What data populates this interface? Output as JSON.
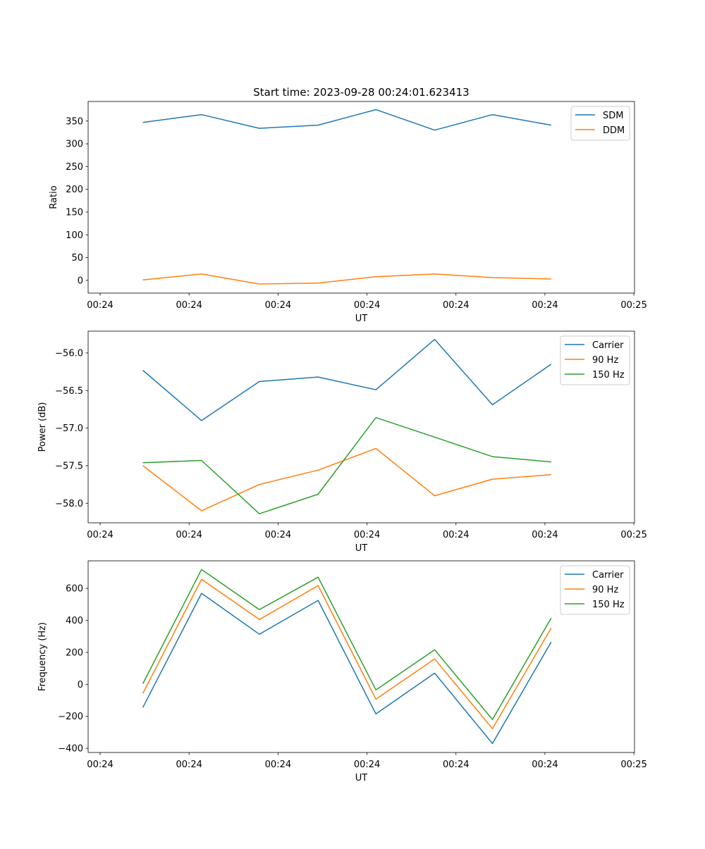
{
  "chart_data": [
    {
      "type": "line",
      "title": "Start time: 2023-09-28 00:24:01.623413",
      "xlabel": "UT",
      "ylabel": "Ratio",
      "x_seconds_after_0024": [
        4.8,
        11.4,
        17.9,
        24.5,
        31.0,
        37.6,
        44.1,
        50.7
      ],
      "xlim": [
        -1.35,
        60.07
      ],
      "xticks": [
        0,
        10,
        20,
        30,
        40,
        50,
        60
      ],
      "xtick_labels": [
        "00:24",
        "00:24",
        "00:24",
        "00:24",
        "00:24",
        "00:24",
        "00:25"
      ],
      "ylim": [
        -28,
        393
      ],
      "yticks": [
        0,
        50,
        100,
        150,
        200,
        250,
        300,
        350
      ],
      "ytick_labels": [
        "0",
        "50",
        "100",
        "150",
        "200",
        "250",
        "300",
        "350"
      ],
      "legend": "top-right",
      "series": [
        {
          "name": "SDM",
          "color": "#1f77b4",
          "values": [
            347,
            364,
            334,
            341,
            375,
            330,
            364,
            341
          ]
        },
        {
          "name": "DDM",
          "color": "#ff7f0e",
          "values": [
            1,
            14,
            -8,
            -6,
            8,
            14,
            6,
            3
          ]
        }
      ]
    },
    {
      "type": "line",
      "title": "",
      "xlabel": "UT",
      "ylabel": "Power (dB)",
      "x_seconds_after_0024": [
        4.8,
        11.4,
        17.9,
        24.5,
        31.0,
        37.6,
        44.1,
        50.7
      ],
      "xlim": [
        -1.35,
        60.07
      ],
      "xticks": [
        0,
        10,
        20,
        30,
        40,
        50,
        60
      ],
      "xtick_labels": [
        "00:24",
        "00:24",
        "00:24",
        "00:24",
        "00:24",
        "00:24",
        "00:25"
      ],
      "ylim": [
        -58.26,
        -55.71
      ],
      "yticks": [
        -58.0,
        -57.5,
        -57.0,
        -56.5,
        -56.0
      ],
      "ytick_labels": [
        "−58.0",
        "−57.5",
        "−57.0",
        "−56.5",
        "−56.0"
      ],
      "legend": "top-right",
      "series": [
        {
          "name": "Carrier",
          "color": "#1f77b4",
          "values": [
            -56.23,
            -56.9,
            -56.38,
            -56.32,
            -56.49,
            -55.82,
            -56.69,
            -56.15
          ]
        },
        {
          "name": "90 Hz",
          "color": "#ff7f0e",
          "values": [
            -57.5,
            -58.1,
            -57.75,
            -57.56,
            -57.27,
            -57.9,
            -57.68,
            -57.62
          ]
        },
        {
          "name": "150 Hz",
          "color": "#2ca02c",
          "values": [
            -57.46,
            -57.43,
            -58.14,
            -57.88,
            -56.86,
            -57.12,
            -57.38,
            -57.45
          ]
        }
      ]
    },
    {
      "type": "line",
      "title": "",
      "xlabel": "UT",
      "ylabel": "Frequency (Hz)",
      "x_seconds_after_0024": [
        4.8,
        11.4,
        17.9,
        24.5,
        31.0,
        37.6,
        44.1,
        50.7
      ],
      "xlim": [
        -1.35,
        60.07
      ],
      "xticks": [
        0,
        10,
        20,
        30,
        40,
        50,
        60
      ],
      "xtick_labels": [
        "00:24",
        "00:24",
        "00:24",
        "00:24",
        "00:24",
        "00:24",
        "00:25"
      ],
      "ylim": [
        -426,
        772
      ],
      "yticks": [
        -400,
        -200,
        0,
        200,
        400,
        600
      ],
      "ytick_labels": [
        "−400",
        "−200",
        "0",
        "200",
        "400",
        "600"
      ],
      "legend": "top-right",
      "series": [
        {
          "name": "Carrier",
          "color": "#1f77b4",
          "values": [
            -145,
            569,
            313,
            525,
            -185,
            70,
            -370,
            264
          ]
        },
        {
          "name": "90 Hz",
          "color": "#ff7f0e",
          "values": [
            -57,
            657,
            405,
            617,
            -93,
            159,
            -277,
            352
          ]
        },
        {
          "name": "150 Hz",
          "color": "#2ca02c",
          "values": [
            4,
            718,
            467,
            670,
            -35,
            216,
            -220,
            414
          ]
        }
      ]
    }
  ]
}
